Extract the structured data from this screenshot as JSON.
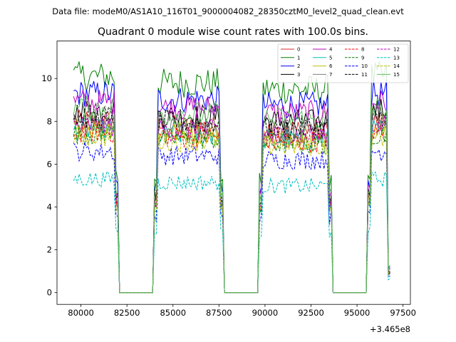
{
  "suptitle": "Data file: modeM0/AS1A10_116T01_9000004082_28350cztM0_level2_quad_clean.evt",
  "chart_data": {
    "type": "line",
    "title": "Quadrant 0 module wise count rates with 100.0s bins.",
    "xlabel": "",
    "ylabel": "",
    "x_offset_label": "+3.465e8",
    "xlim": [
      78700,
      97900
    ],
    "ylim": [
      -0.55,
      11.75
    ],
    "xticks": [
      80000,
      82500,
      85000,
      87500,
      90000,
      92500,
      95000,
      97500
    ],
    "xtick_labels": [
      "80000",
      "82500",
      "85000",
      "87500",
      "90000",
      "92500",
      "95000",
      "97500"
    ],
    "yticks": [
      0,
      2,
      4,
      6,
      8,
      10
    ],
    "ytick_labels": [
      "0",
      "2",
      "4",
      "6",
      "8",
      "10"
    ],
    "bin_seconds": 100,
    "x_start": 79600,
    "x_end": 96800,
    "zero_gaps": [
      [
        82000,
        84000
      ],
      [
        87700,
        89700
      ],
      [
        93600,
        95600
      ]
    ],
    "legend": {
      "location": "top-right",
      "columns": 4
    },
    "series": [
      {
        "name": "0",
        "color": "#d62728",
        "dash": "solid",
        "level": 8.0
      },
      {
        "name": "1",
        "color": "#008000",
        "dash": "solid",
        "level": 10.1
      },
      {
        "name": "2",
        "color": "#0000ff",
        "dash": "solid",
        "level": 9.3
      },
      {
        "name": "3",
        "color": "#000000",
        "dash": "solid",
        "level": 8.5
      },
      {
        "name": "4",
        "color": "#bf00bf",
        "dash": "solid",
        "level": 8.9
      },
      {
        "name": "5",
        "color": "#00bfbf",
        "dash": "solid",
        "level": 7.6
      },
      {
        "name": "6",
        "color": "#bfbf00",
        "dash": "solid",
        "level": 7.7
      },
      {
        "name": "7",
        "color": "#7f7f7f",
        "dash": "solid",
        "level": 7.9
      },
      {
        "name": "8",
        "color": "#ff0000",
        "dash": "dashed",
        "level": 7.5
      },
      {
        "name": "9",
        "color": "#008000",
        "dash": "dashed",
        "level": 7.4
      },
      {
        "name": "10",
        "color": "#0000ff",
        "dash": "dashed",
        "level": 6.6
      },
      {
        "name": "11",
        "color": "#000000",
        "dash": "dashed",
        "level": 8.2
      },
      {
        "name": "12",
        "color": "#bf00bf",
        "dash": "dashed",
        "level": 7.8
      },
      {
        "name": "13",
        "color": "#00bfbf",
        "dash": "dashed",
        "level": 5.3
      },
      {
        "name": "14",
        "color": "#bfbf00",
        "dash": "dashed",
        "level": 7.3
      },
      {
        "name": "15",
        "color": "#5fbf5f",
        "dash": "solid",
        "level": 8.6
      }
    ]
  }
}
